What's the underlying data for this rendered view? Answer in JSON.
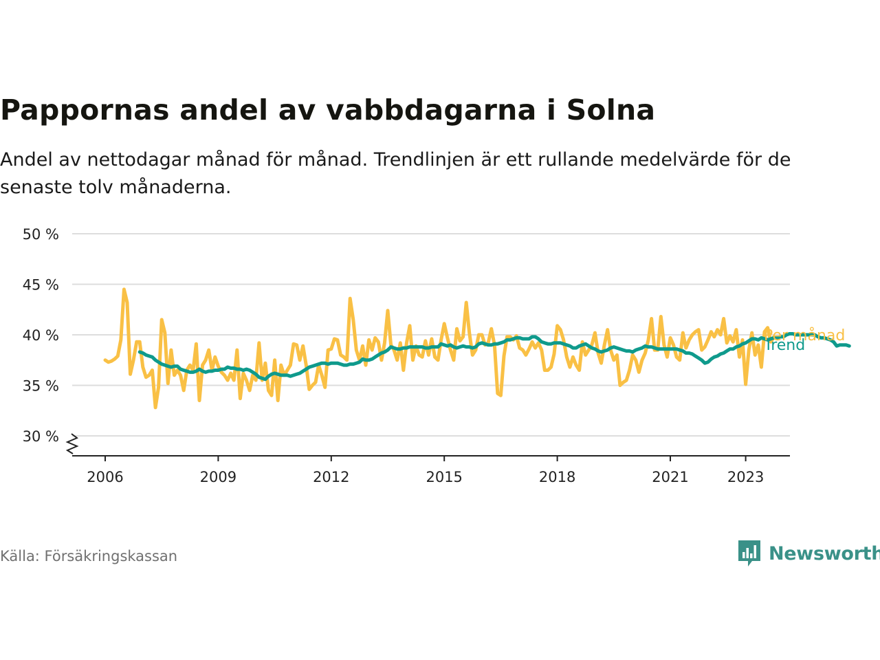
{
  "header": {
    "title": "Pappornas andel av vabbdagarna i Solna",
    "subtitle": "Andel av nettodagar månad för månad. Trendlinjen är ett rullande medelvärde för de senaste tolv månaderna."
  },
  "footer": {
    "source": "Källa: Försäkringskassan",
    "brand": "Newsworthy"
  },
  "colors": {
    "monthly": "#f9c045",
    "trend": "#0f9a8c",
    "grid": "#dddddd",
    "axis": "#222222",
    "brand": "#3a9188"
  },
  "chart_data": {
    "type": "line",
    "ylim": [
      30,
      50
    ],
    "y_ticks": [
      30,
      35,
      40,
      45,
      50
    ],
    "y_tick_labels": [
      "30 %",
      "35 %",
      "40 %",
      "45 %",
      "50 %"
    ],
    "x_tick_years": [
      2006,
      2009,
      2012,
      2015,
      2018,
      2021,
      2023
    ],
    "x_tick_labels": [
      "2006",
      "2009",
      "2012",
      "2015",
      "2018",
      "2021",
      "2023"
    ],
    "axis_break": true,
    "grid": true,
    "series": [
      {
        "name": "Per månad",
        "start": "2006-01",
        "values": [
          37.5,
          37.3,
          37.4,
          37.6,
          37.9,
          39.5,
          44.5,
          43.2,
          36.1,
          37.5,
          39.3,
          39.3,
          36.8,
          35.8,
          36.0,
          36.5,
          32.8,
          34.8,
          41.5,
          40.2,
          35.2,
          38.5,
          36.0,
          36.5,
          36.0,
          34.5,
          36.5,
          37.0,
          36.5,
          39.1,
          33.5,
          37.0,
          37.5,
          38.5,
          36.5,
          37.8,
          36.9,
          36.3,
          36.0,
          35.5,
          36.2,
          35.5,
          38.5,
          33.7,
          36.2,
          35.5,
          34.5,
          36.0,
          35.5,
          39.2,
          35.5,
          37.2,
          34.5,
          34.0,
          37.5,
          33.5,
          37.0,
          36.0,
          36.5,
          37.0,
          39.1,
          39.0,
          37.5,
          38.9,
          37.0,
          34.6,
          35.0,
          35.3,
          37.0,
          36.0,
          34.8,
          38.5,
          38.6,
          39.6,
          39.5,
          38.0,
          37.8,
          37.5,
          43.6,
          41.5,
          38.5,
          37.5,
          38.9,
          37.0,
          39.5,
          38.5,
          39.7,
          39.3,
          37.5,
          39.2,
          42.4,
          39.0,
          38.5,
          37.5,
          39.2,
          36.5,
          39.2,
          40.9,
          37.5,
          38.9,
          38.0,
          37.8,
          39.4,
          38.0,
          39.6,
          37.8,
          37.5,
          39.5,
          41.1,
          39.7,
          38.5,
          37.5,
          40.6,
          39.4,
          39.8,
          43.2,
          40.2,
          38.0,
          38.5,
          40.0,
          40.0,
          39.0,
          39.2,
          40.6,
          39.0,
          34.2,
          34.0,
          37.9,
          39.8,
          39.8,
          39.5,
          39.9,
          38.7,
          38.5,
          38.0,
          38.6,
          39.3,
          38.7,
          39.2,
          38.5,
          36.5,
          36.5,
          36.8,
          38.1,
          40.9,
          40.5,
          39.5,
          37.8,
          36.8,
          37.8,
          37.0,
          36.5,
          39.3,
          38.0,
          38.5,
          39.0,
          40.2,
          38.2,
          37.2,
          39.0,
          40.5,
          38.5,
          37.5,
          38.0,
          35.0,
          35.3,
          35.5,
          36.5,
          38.0,
          37.5,
          36.3,
          37.5,
          38.2,
          39.5,
          41.6,
          38.5,
          38.5,
          41.8,
          39.0,
          37.8,
          39.7,
          39.0,
          37.8,
          37.5,
          40.2,
          38.7,
          39.5,
          40.0,
          40.3,
          40.5,
          38.5,
          38.8,
          39.5,
          40.3,
          39.8,
          40.5,
          40.0,
          41.6,
          39.2,
          39.9,
          39.3,
          40.5,
          37.8,
          39.5,
          35.1,
          38.5,
          40.2,
          38.0,
          39.0,
          36.8,
          40.3,
          40.7,
          39.3,
          39.8
        ]
      },
      {
        "name": "Trend",
        "start": "2006-12",
        "values": [
          38.3,
          38.2,
          38.0,
          37.9,
          37.8,
          37.5,
          37.3,
          37.1,
          37.0,
          36.9,
          36.8,
          36.9,
          36.9,
          36.6,
          36.5,
          36.4,
          36.3,
          36.3,
          36.4,
          36.6,
          36.4,
          36.3,
          36.4,
          36.4,
          36.5,
          36.5,
          36.6,
          36.6,
          36.8,
          36.7,
          36.7,
          36.6,
          36.6,
          36.5,
          36.6,
          36.5,
          36.3,
          36.1,
          35.8,
          35.7,
          35.6,
          35.9,
          36.1,
          36.2,
          36.1,
          36.0,
          36.0,
          36.0,
          35.9,
          36.0,
          36.1,
          36.2,
          36.4,
          36.6,
          36.8,
          36.9,
          37.0,
          37.1,
          37.2,
          37.2,
          37.1,
          37.2,
          37.2,
          37.2,
          37.1,
          37.0,
          37.0,
          37.1,
          37.1,
          37.2,
          37.3,
          37.6,
          37.5,
          37.5,
          37.6,
          37.8,
          38.0,
          38.2,
          38.3,
          38.5,
          38.8,
          38.7,
          38.6,
          38.6,
          38.7,
          38.7,
          38.8,
          38.8,
          38.8,
          38.8,
          38.8,
          38.7,
          38.7,
          38.8,
          38.8,
          38.8,
          39.1,
          39.0,
          38.9,
          39.0,
          38.8,
          38.7,
          38.8,
          38.9,
          38.8,
          38.8,
          38.7,
          38.8,
          39.1,
          39.2,
          39.1,
          39.0,
          39.0,
          39.1,
          39.1,
          39.2,
          39.3,
          39.5,
          39.5,
          39.6,
          39.7,
          39.7,
          39.6,
          39.6,
          39.6,
          39.8,
          39.8,
          39.6,
          39.3,
          39.2,
          39.1,
          39.1,
          39.2,
          39.2,
          39.2,
          39.1,
          39.0,
          38.9,
          38.7,
          38.7,
          38.9,
          39.0,
          39.1,
          38.9,
          38.7,
          38.6,
          38.4,
          38.3,
          38.4,
          38.5,
          38.7,
          38.8,
          38.7,
          38.6,
          38.5,
          38.4,
          38.4,
          38.3,
          38.5,
          38.6,
          38.7,
          38.9,
          38.8,
          38.8,
          38.7,
          38.6,
          38.6,
          38.6,
          38.6,
          38.6,
          38.6,
          38.6,
          38.5,
          38.4,
          38.2,
          38.2,
          38.1,
          37.9,
          37.7,
          37.5,
          37.2,
          37.3,
          37.6,
          37.8,
          37.9,
          38.1,
          38.2,
          38.4,
          38.6,
          38.6,
          38.8,
          38.9,
          39.1,
          39.2,
          39.4,
          39.6,
          39.6,
          39.5,
          39.7,
          39.6,
          39.5,
          39.6,
          39.7,
          39.7,
          39.8,
          39.8,
          40.0,
          40.1,
          40.1,
          40.0,
          40.0,
          40.0,
          40.0,
          40.0,
          40.0,
          40.0,
          39.8,
          39.7,
          39.7,
          39.6,
          39.5,
          39.3,
          38.9,
          39.0,
          39.0,
          39.0,
          38.9
        ]
      }
    ]
  }
}
